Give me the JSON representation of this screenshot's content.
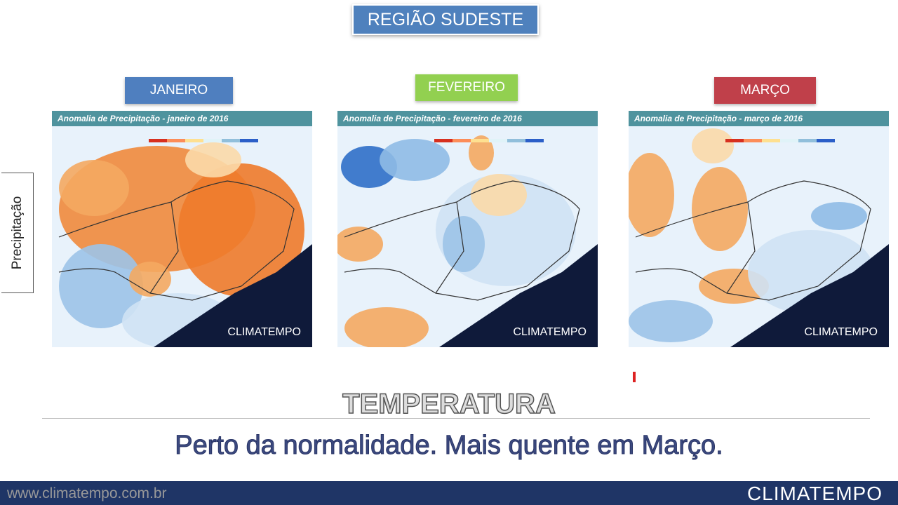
{
  "header": {
    "title": "REGIÃO SUDESTE"
  },
  "side_label": "Precipitação",
  "panels": [
    {
      "month": "JANEIRO",
      "map_title": "Anomalia de Precipitação - janeiro de 2016",
      "watermark": "CLIMATEMPO"
    },
    {
      "month": "FEVEREIRO",
      "map_title": "Anomalia de Precipitação - fevereiro de 2016",
      "watermark": "CLIMATEMPO"
    },
    {
      "month": "MARÇO",
      "map_title": "Anomalia de Precipitação - março de 2016",
      "watermark": "CLIMATEMPO"
    }
  ],
  "section": {
    "title": "TEMPERATURA",
    "text": "Perto da normalidade. Mais quente em Março."
  },
  "footer": {
    "url": "www.climatempo.com.br",
    "logo": "CLIMATEMPO"
  }
}
